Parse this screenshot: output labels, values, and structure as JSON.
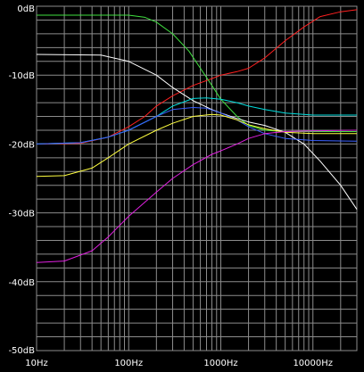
{
  "chart_data": {
    "type": "line",
    "title": "",
    "xlabel": "",
    "ylabel": "",
    "x_scale": "log",
    "xlim": [
      10,
      30000
    ],
    "ylim": [
      -50,
      0
    ],
    "grid": true,
    "legend": "none",
    "colors": {
      "background": "#000000",
      "grid": "#8c8c8c",
      "tick_text": "#ffffff"
    },
    "x_ticks": [
      {
        "value": 10,
        "label": "10Hz"
      },
      {
        "value": 100,
        "label": "100Hz"
      },
      {
        "value": 1000,
        "label": "1000Hz"
      },
      {
        "value": 10000,
        "label": "10000Hz"
      }
    ],
    "y_ticks": [
      {
        "value": 0,
        "label": "0dB"
      },
      {
        "value": -10,
        "label": "-10dB"
      },
      {
        "value": -20,
        "label": "-20dB"
      },
      {
        "value": -30,
        "label": "-30dB"
      },
      {
        "value": -40,
        "label": "-40dB"
      },
      {
        "value": -50,
        "label": "-50dB"
      }
    ],
    "series": [
      {
        "color": "#ff2020",
        "points": [
          [
            10,
            -20
          ],
          [
            30,
            -19.9
          ],
          [
            60,
            -19
          ],
          [
            100,
            -17.5
          ],
          [
            150,
            -16
          ],
          [
            200,
            -14.5
          ],
          [
            300,
            -13
          ],
          [
            500,
            -11.5
          ],
          [
            800,
            -10.5
          ],
          [
            1000,
            -10
          ],
          [
            1500,
            -9.5
          ],
          [
            2000,
            -9
          ],
          [
            3000,
            -7.5
          ],
          [
            5000,
            -5
          ],
          [
            8000,
            -3
          ],
          [
            12000,
            -1.5
          ],
          [
            20000,
            -0.8
          ],
          [
            30000,
            -0.5
          ]
        ]
      },
      {
        "color": "#40e040",
        "points": [
          [
            10,
            -1.3
          ],
          [
            100,
            -1.3
          ],
          [
            150,
            -1.6
          ],
          [
            200,
            -2.3
          ],
          [
            300,
            -4
          ],
          [
            450,
            -6.5
          ],
          [
            600,
            -9
          ],
          [
            800,
            -11.5
          ],
          [
            1000,
            -13.5
          ],
          [
            1500,
            -16
          ],
          [
            2000,
            -17.3
          ],
          [
            3000,
            -18
          ],
          [
            5000,
            -18.2
          ],
          [
            10000,
            -18.2
          ],
          [
            30000,
            -18.2
          ]
        ]
      },
      {
        "color": "#ffffff",
        "points": [
          [
            10,
            -7
          ],
          [
            50,
            -7.1
          ],
          [
            100,
            -8
          ],
          [
            200,
            -10
          ],
          [
            300,
            -11.8
          ],
          [
            500,
            -13.7
          ],
          [
            800,
            -15
          ],
          [
            1000,
            -15.5
          ],
          [
            1500,
            -16.3
          ],
          [
            2000,
            -16.8
          ],
          [
            3000,
            -17.3
          ],
          [
            5000,
            -18.3
          ],
          [
            8000,
            -20
          ],
          [
            12000,
            -22.5
          ],
          [
            20000,
            -26
          ],
          [
            30000,
            -29.5
          ]
        ]
      },
      {
        "color": "#00dcdc",
        "points": [
          [
            10,
            -20
          ],
          [
            30,
            -19.8
          ],
          [
            60,
            -19
          ],
          [
            100,
            -18
          ],
          [
            200,
            -16
          ],
          [
            300,
            -14.5
          ],
          [
            500,
            -13.4
          ],
          [
            700,
            -13.3
          ],
          [
            1000,
            -13.5
          ],
          [
            1500,
            -14
          ],
          [
            2000,
            -14.5
          ],
          [
            3000,
            -15
          ],
          [
            5000,
            -15.5
          ],
          [
            10000,
            -15.8
          ],
          [
            30000,
            -15.8
          ]
        ]
      },
      {
        "color": "#3a60ff",
        "points": [
          [
            10,
            -20
          ],
          [
            30,
            -19.8
          ],
          [
            60,
            -19
          ],
          [
            100,
            -18
          ],
          [
            200,
            -16
          ],
          [
            300,
            -15
          ],
          [
            500,
            -14.7
          ],
          [
            700,
            -14.8
          ],
          [
            1000,
            -15.5
          ],
          [
            1500,
            -16.5
          ],
          [
            2000,
            -17.5
          ],
          [
            3000,
            -18.5
          ],
          [
            5000,
            -19.2
          ],
          [
            10000,
            -19.5
          ],
          [
            30000,
            -19.6
          ]
        ]
      },
      {
        "color": "#ffff40",
        "points": [
          [
            10,
            -24.7
          ],
          [
            20,
            -24.6
          ],
          [
            40,
            -23.5
          ],
          [
            60,
            -22
          ],
          [
            100,
            -20
          ],
          [
            200,
            -18
          ],
          [
            300,
            -17
          ],
          [
            500,
            -16
          ],
          [
            800,
            -15.7
          ],
          [
            1000,
            -15.8
          ],
          [
            1500,
            -16.5
          ],
          [
            2000,
            -17.2
          ],
          [
            3000,
            -17.8
          ],
          [
            5000,
            -18.3
          ],
          [
            10000,
            -18.5
          ],
          [
            30000,
            -18.5
          ]
        ]
      },
      {
        "color": "#e020e0",
        "points": [
          [
            10,
            -37.2
          ],
          [
            20,
            -37
          ],
          [
            40,
            -35.5
          ],
          [
            60,
            -33.5
          ],
          [
            100,
            -30.5
          ],
          [
            200,
            -27
          ],
          [
            300,
            -25
          ],
          [
            500,
            -23
          ],
          [
            800,
            -21.5
          ],
          [
            1000,
            -21
          ],
          [
            1500,
            -20
          ],
          [
            2000,
            -19.2
          ],
          [
            3000,
            -18.5
          ],
          [
            5000,
            -18.2
          ],
          [
            10000,
            -18.1
          ],
          [
            30000,
            -18
          ]
        ]
      }
    ]
  }
}
